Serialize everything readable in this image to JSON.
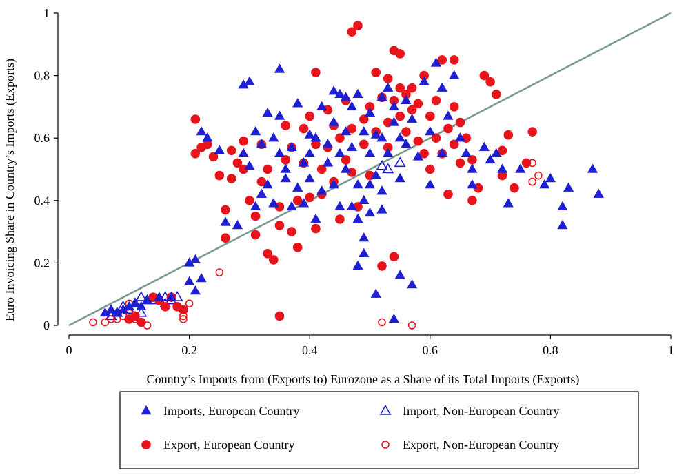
{
  "chart_data": {
    "type": "scatter",
    "title": "",
    "xlabel": "Country’s Imports from (Exports to) Eurozone as a  Share of its Total Imports (Exports)",
    "ylabel": "Euro Invoicing Share in Country’s Imports (Exports)",
    "xlim": [
      0,
      1
    ],
    "ylim": [
      0,
      1
    ],
    "xticks": [
      "0",
      "0.2",
      "0.4",
      "0.6",
      "0.8",
      "1"
    ],
    "yticks": [
      "0",
      "0.2",
      "0.4",
      "0.6",
      "0.8",
      "1"
    ],
    "grid": false,
    "legend_position": "bottom",
    "reference_line": {
      "x": [
        0,
        1
      ],
      "y": [
        0,
        1
      ],
      "color": "#7a9a8e"
    },
    "series": [
      {
        "name": "Imports, European Country",
        "marker": "triangle-filled",
        "color": "#1f1fd2",
        "points": [
          [
            0.06,
            0.04
          ],
          [
            0.07,
            0.05
          ],
          [
            0.08,
            0.04
          ],
          [
            0.09,
            0.05
          ],
          [
            0.1,
            0.06
          ],
          [
            0.11,
            0.07
          ],
          [
            0.12,
            0.06
          ],
          [
            0.13,
            0.08
          ],
          [
            0.15,
            0.09
          ],
          [
            0.17,
            0.09
          ],
          [
            0.2,
            0.2
          ],
          [
            0.21,
            0.21
          ],
          [
            0.2,
            0.14
          ],
          [
            0.21,
            0.11
          ],
          [
            0.22,
            0.15
          ],
          [
            0.22,
            0.62
          ],
          [
            0.23,
            0.6
          ],
          [
            0.25,
            0.56
          ],
          [
            0.26,
            0.33
          ],
          [
            0.28,
            0.32
          ],
          [
            0.29,
            0.77
          ],
          [
            0.29,
            0.55
          ],
          [
            0.3,
            0.51
          ],
          [
            0.3,
            0.78
          ],
          [
            0.31,
            0.38
          ],
          [
            0.31,
            0.62
          ],
          [
            0.32,
            0.42
          ],
          [
            0.32,
            0.58
          ],
          [
            0.33,
            0.45
          ],
          [
            0.33,
            0.68
          ],
          [
            0.34,
            0.39
          ],
          [
            0.34,
            0.6
          ],
          [
            0.35,
            0.82
          ],
          [
            0.35,
            0.55
          ],
          [
            0.35,
            0.67
          ],
          [
            0.36,
            0.47
          ],
          [
            0.36,
            0.5
          ],
          [
            0.37,
            0.38
          ],
          [
            0.37,
            0.57
          ],
          [
            0.38,
            0.71
          ],
          [
            0.38,
            0.44
          ],
          [
            0.39,
            0.52
          ],
          [
            0.39,
            0.39
          ],
          [
            0.4,
            0.61
          ],
          [
            0.4,
            0.47
          ],
          [
            0.4,
            0.55
          ],
          [
            0.41,
            0.6
          ],
          [
            0.41,
            0.34
          ],
          [
            0.42,
            0.7
          ],
          [
            0.42,
            0.43
          ],
          [
            0.43,
            0.58
          ],
          [
            0.43,
            0.52
          ],
          [
            0.44,
            0.75
          ],
          [
            0.44,
            0.65
          ],
          [
            0.44,
            0.45
          ],
          [
            0.45,
            0.38
          ],
          [
            0.45,
            0.74
          ],
          [
            0.45,
            0.55
          ],
          [
            0.46,
            0.73
          ],
          [
            0.46,
            0.5
          ],
          [
            0.46,
            0.62
          ],
          [
            0.47,
            0.7
          ],
          [
            0.47,
            0.38
          ],
          [
            0.47,
            0.57
          ],
          [
            0.48,
            0.74
          ],
          [
            0.48,
            0.45
          ],
          [
            0.48,
            0.34
          ],
          [
            0.48,
            0.19
          ],
          [
            0.49,
            0.62
          ],
          [
            0.49,
            0.4
          ],
          [
            0.49,
            0.28
          ],
          [
            0.49,
            0.23
          ],
          [
            0.5,
            0.68
          ],
          [
            0.5,
            0.55
          ],
          [
            0.5,
            0.36
          ],
          [
            0.5,
            0.45
          ],
          [
            0.51,
            0.61
          ],
          [
            0.51,
            0.48
          ],
          [
            0.51,
            0.1
          ],
          [
            0.52,
            0.73
          ],
          [
            0.52,
            0.6
          ],
          [
            0.52,
            0.43
          ],
          [
            0.52,
            0.37
          ],
          [
            0.53,
            0.76
          ],
          [
            0.53,
            0.55
          ],
          [
            0.54,
            0.7
          ],
          [
            0.54,
            0.65
          ],
          [
            0.54,
            0.02
          ],
          [
            0.55,
            0.6
          ],
          [
            0.55,
            0.47
          ],
          [
            0.55,
            0.16
          ],
          [
            0.56,
            0.58
          ],
          [
            0.56,
            0.72
          ],
          [
            0.57,
            0.13
          ],
          [
            0.57,
            0.66
          ],
          [
            0.58,
            0.54
          ],
          [
            0.59,
            0.78
          ],
          [
            0.6,
            0.62
          ],
          [
            0.6,
            0.45
          ],
          [
            0.61,
            0.84
          ],
          [
            0.62,
            0.76
          ],
          [
            0.62,
            0.55
          ],
          [
            0.63,
            0.67
          ],
          [
            0.64,
            0.8
          ],
          [
            0.65,
            0.6
          ],
          [
            0.66,
            0.55
          ],
          [
            0.67,
            0.5
          ],
          [
            0.67,
            0.45
          ],
          [
            0.69,
            0.57
          ],
          [
            0.7,
            0.53
          ],
          [
            0.71,
            0.55
          ],
          [
            0.72,
            0.5
          ],
          [
            0.73,
            0.39
          ],
          [
            0.75,
            0.5
          ],
          [
            0.79,
            0.45
          ],
          [
            0.8,
            0.47
          ],
          [
            0.82,
            0.38
          ],
          [
            0.82,
            0.32
          ],
          [
            0.83,
            0.44
          ],
          [
            0.87,
            0.5
          ],
          [
            0.88,
            0.42
          ]
        ]
      },
      {
        "name": "Import, Non-European Country",
        "marker": "triangle-open",
        "color": "#1f1fd2",
        "points": [
          [
            0.07,
            0.03
          ],
          [
            0.08,
            0.04
          ],
          [
            0.09,
            0.06
          ],
          [
            0.1,
            0.05
          ],
          [
            0.11,
            0.07
          ],
          [
            0.12,
            0.09
          ],
          [
            0.12,
            0.04
          ],
          [
            0.13,
            0.08
          ],
          [
            0.14,
            0.08
          ],
          [
            0.16,
            0.09
          ],
          [
            0.16,
            0.07
          ],
          [
            0.17,
            0.08
          ],
          [
            0.18,
            0.09
          ],
          [
            0.52,
            0.51
          ],
          [
            0.53,
            0.5
          ],
          [
            0.55,
            0.52
          ]
        ]
      },
      {
        "name": "Export, European Country",
        "marker": "circle-filled",
        "color": "#e8141c",
        "points": [
          [
            0.1,
            0.02
          ],
          [
            0.11,
            0.03
          ],
          [
            0.12,
            0.01
          ],
          [
            0.14,
            0.09
          ],
          [
            0.15,
            0.08
          ],
          [
            0.16,
            0.06
          ],
          [
            0.17,
            0.09
          ],
          [
            0.18,
            0.06
          ],
          [
            0.19,
            0.05
          ],
          [
            0.21,
            0.66
          ],
          [
            0.21,
            0.55
          ],
          [
            0.22,
            0.57
          ],
          [
            0.23,
            0.58
          ],
          [
            0.24,
            0.54
          ],
          [
            0.25,
            0.48
          ],
          [
            0.26,
            0.28
          ],
          [
            0.26,
            0.37
          ],
          [
            0.27,
            0.56
          ],
          [
            0.27,
            0.47
          ],
          [
            0.28,
            0.52
          ],
          [
            0.29,
            0.59
          ],
          [
            0.29,
            0.5
          ],
          [
            0.3,
            0.4
          ],
          [
            0.31,
            0.35
          ],
          [
            0.31,
            0.29
          ],
          [
            0.32,
            0.58
          ],
          [
            0.32,
            0.46
          ],
          [
            0.33,
            0.23
          ],
          [
            0.33,
            0.5
          ],
          [
            0.34,
            0.21
          ],
          [
            0.35,
            0.32
          ],
          [
            0.35,
            0.38
          ],
          [
            0.35,
            0.03
          ],
          [
            0.36,
            0.64
          ],
          [
            0.36,
            0.53
          ],
          [
            0.37,
            0.57
          ],
          [
            0.37,
            0.3
          ],
          [
            0.38,
            0.25
          ],
          [
            0.38,
            0.4
          ],
          [
            0.39,
            0.52
          ],
          [
            0.39,
            0.63
          ],
          [
            0.4,
            0.41
          ],
          [
            0.4,
            0.67
          ],
          [
            0.41,
            0.31
          ],
          [
            0.41,
            0.58
          ],
          [
            0.41,
            0.81
          ],
          [
            0.42,
            0.5
          ],
          [
            0.42,
            0.42
          ],
          [
            0.43,
            0.69
          ],
          [
            0.43,
            0.57
          ],
          [
            0.44,
            0.46
          ],
          [
            0.44,
            0.64
          ],
          [
            0.45,
            0.6
          ],
          [
            0.45,
            0.34
          ],
          [
            0.46,
            0.53
          ],
          [
            0.46,
            0.72
          ],
          [
            0.47,
            0.49
          ],
          [
            0.47,
            0.63
          ],
          [
            0.47,
            0.94
          ],
          [
            0.48,
            0.38
          ],
          [
            0.48,
            0.96
          ],
          [
            0.49,
            0.66
          ],
          [
            0.49,
            0.58
          ],
          [
            0.5,
            0.7
          ],
          [
            0.5,
            0.48
          ],
          [
            0.51,
            0.81
          ],
          [
            0.51,
            0.62
          ],
          [
            0.52,
            0.73
          ],
          [
            0.52,
            0.19
          ],
          [
            0.53,
            0.79
          ],
          [
            0.53,
            0.65
          ],
          [
            0.53,
            0.57
          ],
          [
            0.54,
            0.88
          ],
          [
            0.54,
            0.72
          ],
          [
            0.54,
            0.22
          ],
          [
            0.55,
            0.76
          ],
          [
            0.55,
            0.67
          ],
          [
            0.55,
            0.87
          ],
          [
            0.56,
            0.74
          ],
          [
            0.56,
            0.62
          ],
          [
            0.57,
            0.69
          ],
          [
            0.57,
            0.76
          ],
          [
            0.58,
            0.71
          ],
          [
            0.58,
            0.59
          ],
          [
            0.59,
            0.55
          ],
          [
            0.59,
            0.8
          ],
          [
            0.6,
            0.67
          ],
          [
            0.6,
            0.5
          ],
          [
            0.61,
            0.72
          ],
          [
            0.61,
            0.6
          ],
          [
            0.62,
            0.85
          ],
          [
            0.62,
            0.55
          ],
          [
            0.63,
            0.63
          ],
          [
            0.63,
            0.42
          ],
          [
            0.64,
            0.7
          ],
          [
            0.64,
            0.58
          ],
          [
            0.64,
            0.85
          ],
          [
            0.65,
            0.65
          ],
          [
            0.65,
            0.52
          ],
          [
            0.66,
            0.6
          ],
          [
            0.67,
            0.4
          ],
          [
            0.67,
            0.53
          ],
          [
            0.68,
            0.44
          ],
          [
            0.69,
            0.8
          ],
          [
            0.7,
            0.78
          ],
          [
            0.71,
            0.74
          ],
          [
            0.72,
            0.56
          ],
          [
            0.72,
            0.48
          ],
          [
            0.73,
            0.61
          ],
          [
            0.74,
            0.44
          ],
          [
            0.76,
            0.52
          ],
          [
            0.77,
            0.62
          ]
        ]
      },
      {
        "name": "Export, Non-European Country",
        "marker": "circle-open",
        "color": "#e8141c",
        "points": [
          [
            0.04,
            0.01
          ],
          [
            0.06,
            0.01
          ],
          [
            0.07,
            0.02
          ],
          [
            0.08,
            0.02
          ],
          [
            0.09,
            0.03
          ],
          [
            0.1,
            0.07
          ],
          [
            0.1,
            0.04
          ],
          [
            0.11,
            0.02
          ],
          [
            0.12,
            0.01
          ],
          [
            0.13,
            0.0
          ],
          [
            0.19,
            0.03
          ],
          [
            0.19,
            0.02
          ],
          [
            0.2,
            0.07
          ],
          [
            0.25,
            0.17
          ],
          [
            0.52,
            0.01
          ],
          [
            0.57,
            0.0
          ],
          [
            0.77,
            0.46
          ],
          [
            0.77,
            0.52
          ],
          [
            0.78,
            0.48
          ]
        ]
      }
    ]
  }
}
